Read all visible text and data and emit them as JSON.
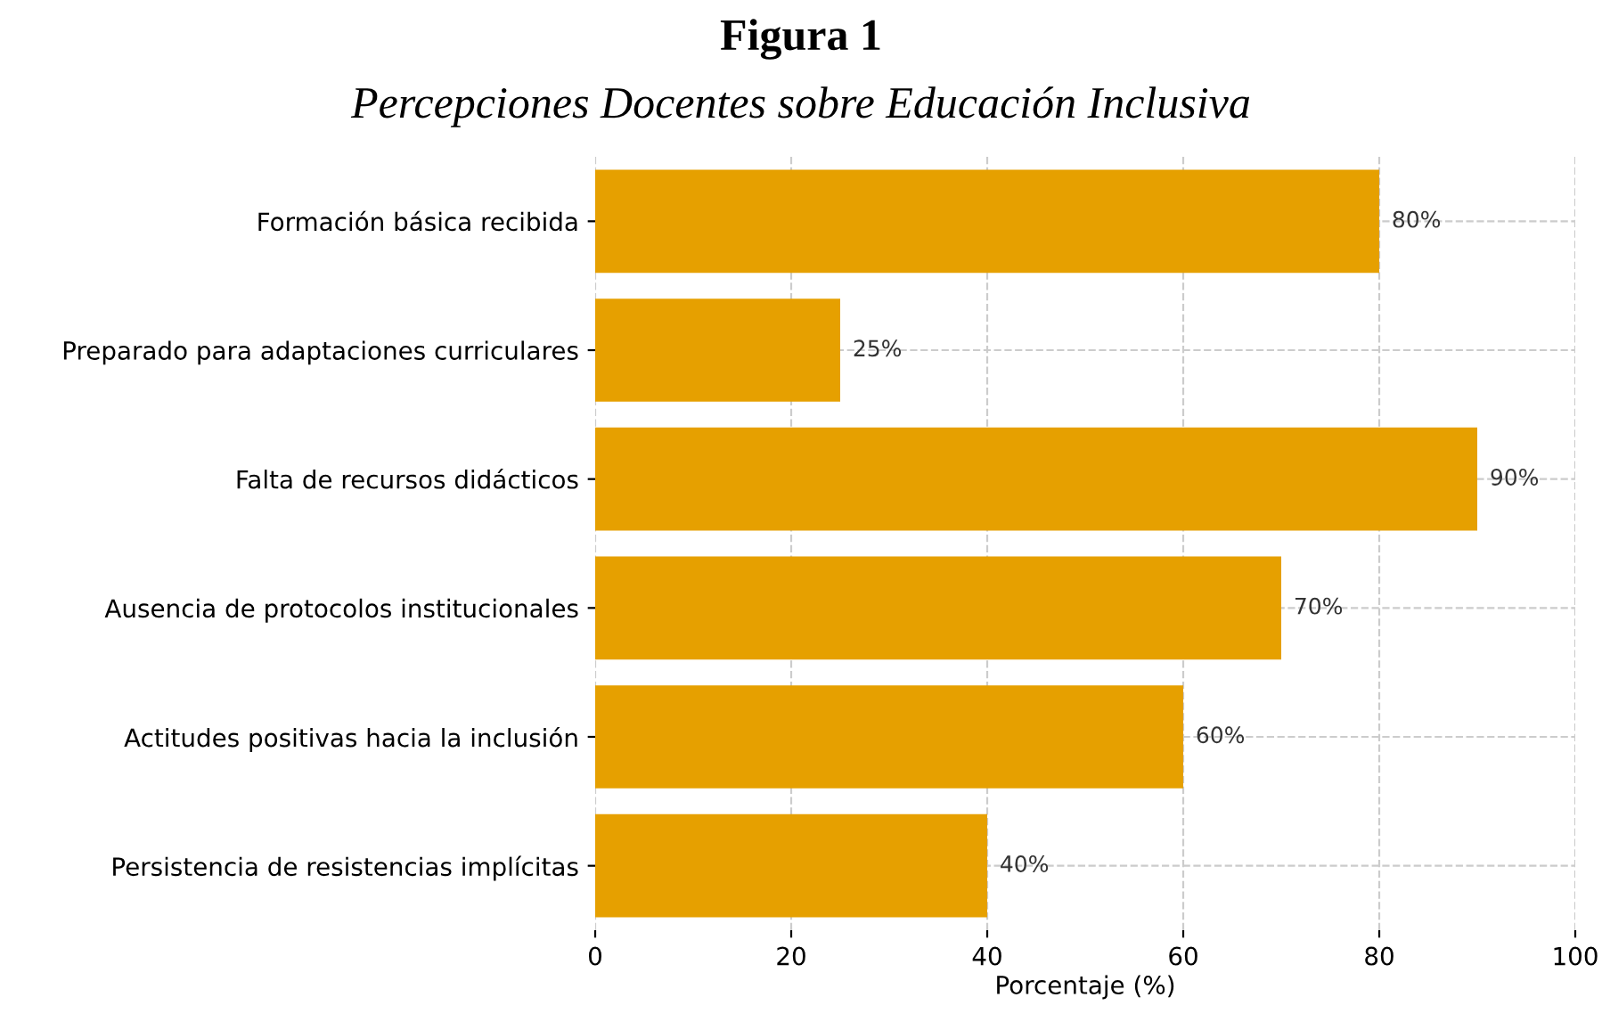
{
  "chart_data": {
    "type": "bar",
    "orientation": "horizontal",
    "title": "Figura 1",
    "subtitle": "Percepciones Docentes sobre Educación Inclusiva",
    "xlabel": "Porcentaje (%)",
    "categories": [
      "Formación básica recibida",
      "Preparado para adaptaciones curriculares",
      "Falta de recursos didácticos",
      "Ausencia de protocolos institucionales",
      "Actitudes positivas hacia la inclusión",
      "Persistencia de resistencias implícitas"
    ],
    "values": [
      80,
      25,
      90,
      70,
      60,
      40
    ],
    "value_labels": [
      "80%",
      "25%",
      "90%",
      "70%",
      "60%",
      "40%"
    ],
    "color": "#e6a000",
    "xlim": [
      0,
      100
    ],
    "xticks": [
      0,
      20,
      40,
      60,
      80,
      100
    ],
    "grid": true
  }
}
